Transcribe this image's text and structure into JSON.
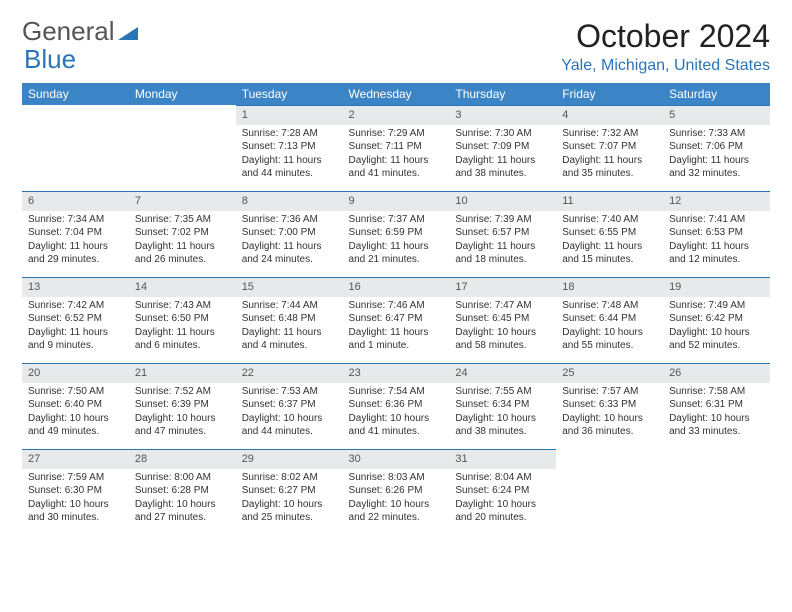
{
  "header": {
    "logo_general": "General",
    "logo_blue": "Blue",
    "month_title": "October 2024",
    "location": "Yale, Michigan, United States"
  },
  "colors": {
    "header_bg": "#3b85c6",
    "accent": "#2a74b8",
    "daynum_bg": "#e8e9ea"
  },
  "day_headers": [
    "Sunday",
    "Monday",
    "Tuesday",
    "Wednesday",
    "Thursday",
    "Friday",
    "Saturday"
  ],
  "weeks": [
    [
      null,
      null,
      {
        "n": "1",
        "sr": "Sunrise: 7:28 AM",
        "ss": "Sunset: 7:13 PM",
        "d1": "Daylight: 11 hours",
        "d2": "and 44 minutes."
      },
      {
        "n": "2",
        "sr": "Sunrise: 7:29 AM",
        "ss": "Sunset: 7:11 PM",
        "d1": "Daylight: 11 hours",
        "d2": "and 41 minutes."
      },
      {
        "n": "3",
        "sr": "Sunrise: 7:30 AM",
        "ss": "Sunset: 7:09 PM",
        "d1": "Daylight: 11 hours",
        "d2": "and 38 minutes."
      },
      {
        "n": "4",
        "sr": "Sunrise: 7:32 AM",
        "ss": "Sunset: 7:07 PM",
        "d1": "Daylight: 11 hours",
        "d2": "and 35 minutes."
      },
      {
        "n": "5",
        "sr": "Sunrise: 7:33 AM",
        "ss": "Sunset: 7:06 PM",
        "d1": "Daylight: 11 hours",
        "d2": "and 32 minutes."
      }
    ],
    [
      {
        "n": "6",
        "sr": "Sunrise: 7:34 AM",
        "ss": "Sunset: 7:04 PM",
        "d1": "Daylight: 11 hours",
        "d2": "and 29 minutes."
      },
      {
        "n": "7",
        "sr": "Sunrise: 7:35 AM",
        "ss": "Sunset: 7:02 PM",
        "d1": "Daylight: 11 hours",
        "d2": "and 26 minutes."
      },
      {
        "n": "8",
        "sr": "Sunrise: 7:36 AM",
        "ss": "Sunset: 7:00 PM",
        "d1": "Daylight: 11 hours",
        "d2": "and 24 minutes."
      },
      {
        "n": "9",
        "sr": "Sunrise: 7:37 AM",
        "ss": "Sunset: 6:59 PM",
        "d1": "Daylight: 11 hours",
        "d2": "and 21 minutes."
      },
      {
        "n": "10",
        "sr": "Sunrise: 7:39 AM",
        "ss": "Sunset: 6:57 PM",
        "d1": "Daylight: 11 hours",
        "d2": "and 18 minutes."
      },
      {
        "n": "11",
        "sr": "Sunrise: 7:40 AM",
        "ss": "Sunset: 6:55 PM",
        "d1": "Daylight: 11 hours",
        "d2": "and 15 minutes."
      },
      {
        "n": "12",
        "sr": "Sunrise: 7:41 AM",
        "ss": "Sunset: 6:53 PM",
        "d1": "Daylight: 11 hours",
        "d2": "and 12 minutes."
      }
    ],
    [
      {
        "n": "13",
        "sr": "Sunrise: 7:42 AM",
        "ss": "Sunset: 6:52 PM",
        "d1": "Daylight: 11 hours",
        "d2": "and 9 minutes."
      },
      {
        "n": "14",
        "sr": "Sunrise: 7:43 AM",
        "ss": "Sunset: 6:50 PM",
        "d1": "Daylight: 11 hours",
        "d2": "and 6 minutes."
      },
      {
        "n": "15",
        "sr": "Sunrise: 7:44 AM",
        "ss": "Sunset: 6:48 PM",
        "d1": "Daylight: 11 hours",
        "d2": "and 4 minutes."
      },
      {
        "n": "16",
        "sr": "Sunrise: 7:46 AM",
        "ss": "Sunset: 6:47 PM",
        "d1": "Daylight: 11 hours",
        "d2": "and 1 minute."
      },
      {
        "n": "17",
        "sr": "Sunrise: 7:47 AM",
        "ss": "Sunset: 6:45 PM",
        "d1": "Daylight: 10 hours",
        "d2": "and 58 minutes."
      },
      {
        "n": "18",
        "sr": "Sunrise: 7:48 AM",
        "ss": "Sunset: 6:44 PM",
        "d1": "Daylight: 10 hours",
        "d2": "and 55 minutes."
      },
      {
        "n": "19",
        "sr": "Sunrise: 7:49 AM",
        "ss": "Sunset: 6:42 PM",
        "d1": "Daylight: 10 hours",
        "d2": "and 52 minutes."
      }
    ],
    [
      {
        "n": "20",
        "sr": "Sunrise: 7:50 AM",
        "ss": "Sunset: 6:40 PM",
        "d1": "Daylight: 10 hours",
        "d2": "and 49 minutes."
      },
      {
        "n": "21",
        "sr": "Sunrise: 7:52 AM",
        "ss": "Sunset: 6:39 PM",
        "d1": "Daylight: 10 hours",
        "d2": "and 47 minutes."
      },
      {
        "n": "22",
        "sr": "Sunrise: 7:53 AM",
        "ss": "Sunset: 6:37 PM",
        "d1": "Daylight: 10 hours",
        "d2": "and 44 minutes."
      },
      {
        "n": "23",
        "sr": "Sunrise: 7:54 AM",
        "ss": "Sunset: 6:36 PM",
        "d1": "Daylight: 10 hours",
        "d2": "and 41 minutes."
      },
      {
        "n": "24",
        "sr": "Sunrise: 7:55 AM",
        "ss": "Sunset: 6:34 PM",
        "d1": "Daylight: 10 hours",
        "d2": "and 38 minutes."
      },
      {
        "n": "25",
        "sr": "Sunrise: 7:57 AM",
        "ss": "Sunset: 6:33 PM",
        "d1": "Daylight: 10 hours",
        "d2": "and 36 minutes."
      },
      {
        "n": "26",
        "sr": "Sunrise: 7:58 AM",
        "ss": "Sunset: 6:31 PM",
        "d1": "Daylight: 10 hours",
        "d2": "and 33 minutes."
      }
    ],
    [
      {
        "n": "27",
        "sr": "Sunrise: 7:59 AM",
        "ss": "Sunset: 6:30 PM",
        "d1": "Daylight: 10 hours",
        "d2": "and 30 minutes."
      },
      {
        "n": "28",
        "sr": "Sunrise: 8:00 AM",
        "ss": "Sunset: 6:28 PM",
        "d1": "Daylight: 10 hours",
        "d2": "and 27 minutes."
      },
      {
        "n": "29",
        "sr": "Sunrise: 8:02 AM",
        "ss": "Sunset: 6:27 PM",
        "d1": "Daylight: 10 hours",
        "d2": "and 25 minutes."
      },
      {
        "n": "30",
        "sr": "Sunrise: 8:03 AM",
        "ss": "Sunset: 6:26 PM",
        "d1": "Daylight: 10 hours",
        "d2": "and 22 minutes."
      },
      {
        "n": "31",
        "sr": "Sunrise: 8:04 AM",
        "ss": "Sunset: 6:24 PM",
        "d1": "Daylight: 10 hours",
        "d2": "and 20 minutes."
      },
      null,
      null
    ]
  ]
}
